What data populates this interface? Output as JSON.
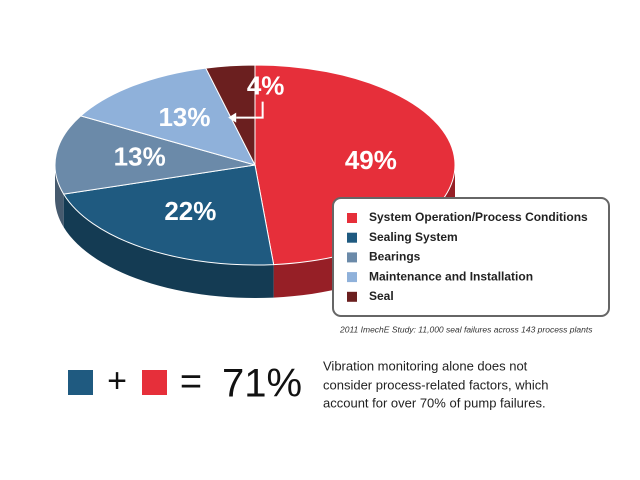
{
  "chart_data": {
    "type": "pie",
    "categories": [
      "System Operation/Process Conditions",
      "Sealing System",
      "Bearings",
      "Maintenance and Installation",
      "Seal"
    ],
    "values": [
      49,
      22,
      13,
      13,
      4
    ],
    "value_labels": [
      "49%",
      "22%",
      "13%",
      "13%",
      "4%"
    ],
    "colors": [
      "#e62f3a",
      "#1f5a80",
      "#6b8aa9",
      "#8fb1da",
      "#6b1f1f"
    ],
    "legend": "lower right",
    "source": "2011 ImechE Study: 11,000 seal failures across 143 process plants"
  },
  "summary": {
    "plus": "+",
    "equals": "=",
    "total": "71%",
    "description": [
      "Vibration monitoring alone does not",
      "consider process-related factors, which",
      "account for over 70% of pump failures."
    ]
  }
}
